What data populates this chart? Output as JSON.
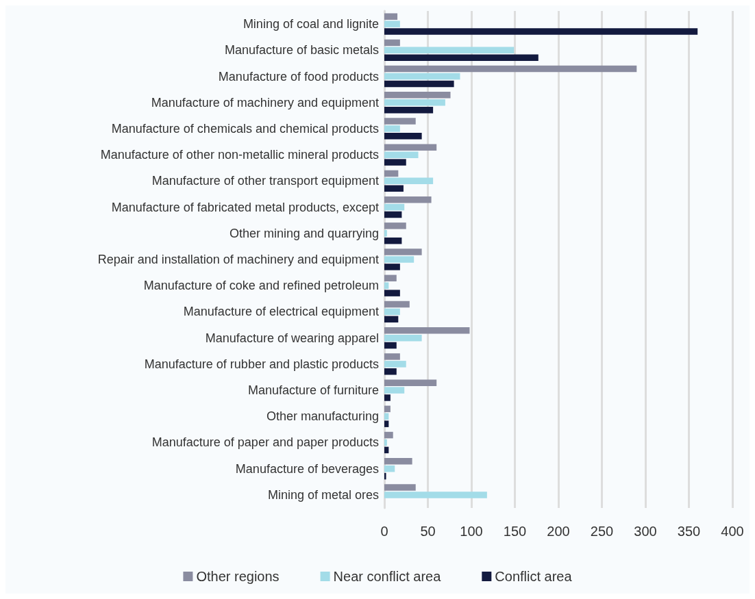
{
  "chart_data": {
    "type": "bar",
    "orientation": "horizontal",
    "categories": [
      "Mining of coal and lignite",
      "Manufacture of basic metals",
      "Manufacture of food products",
      "Manufacture of machinery and equipment",
      "Manufacture of chemicals and chemical products",
      "Manufacture of other non-metallic mineral products",
      "Manufacture of other transport equipment",
      "Manufacture of fabricated metal products, except",
      "Other mining and quarrying",
      "Repair and installation of machinery and equipment",
      "Manufacture of coke and refined petroleum",
      "Manufacture of electrical equipment",
      "Manufacture of wearing apparel",
      "Manufacture of rubber and plastic products",
      "Manufacture of furniture",
      "Other manufacturing",
      "Manufacture of paper and paper products",
      "Manufacture of beverages",
      "Mining of metal ores"
    ],
    "series": [
      {
        "name": "Other regions",
        "color": "#8a8ca0",
        "values": [
          15,
          18,
          290,
          76,
          36,
          60,
          16,
          54,
          25,
          43,
          14,
          29,
          98,
          18,
          60,
          7,
          10,
          32,
          36
        ]
      },
      {
        "name": "Near conflict area",
        "color": "#a3dce8",
        "values": [
          18,
          149,
          87,
          70,
          18,
          39,
          56,
          23,
          3,
          34,
          5,
          18,
          43,
          25,
          23,
          5,
          3,
          12,
          118
        ]
      },
      {
        "name": "Conflict area",
        "color": "#131a3f",
        "values": [
          360,
          177,
          80,
          56,
          43,
          25,
          22,
          20,
          20,
          18,
          18,
          16,
          14,
          14,
          7,
          5,
          5,
          2,
          0
        ]
      }
    ],
    "xlim": [
      0,
      400
    ],
    "xticks": [
      0,
      50,
      100,
      150,
      200,
      250,
      300,
      350,
      400
    ],
    "grid": "x",
    "legend": "bottom"
  }
}
